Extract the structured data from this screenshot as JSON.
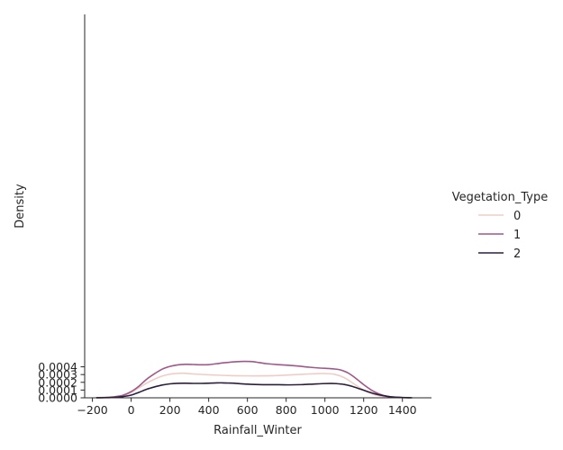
{
  "chart_data": {
    "type": "line",
    "xlabel": "Rainfall_Winter",
    "ylabel": "Density",
    "xlim": [
      -240,
      1550
    ],
    "ylim": [
      0,
      0.00495
    ],
    "x_ticks": [
      {
        "value": -200,
        "label": "−200"
      },
      {
        "value": 0,
        "label": "0"
      },
      {
        "value": 200,
        "label": "200"
      },
      {
        "value": 400,
        "label": "400"
      },
      {
        "value": 600,
        "label": "600"
      },
      {
        "value": 800,
        "label": "800"
      },
      {
        "value": 1000,
        "label": "1000"
      },
      {
        "value": 1200,
        "label": "1200"
      },
      {
        "value": 1400,
        "label": "1400"
      }
    ],
    "y_ticks": [
      {
        "value": 0,
        "label": "0.0000"
      },
      {
        "value": 0.0001,
        "label": "0.0001"
      },
      {
        "value": 0.0002,
        "label": "0.0002"
      },
      {
        "value": 0.0003,
        "label": "0.0003"
      },
      {
        "value": 0.0004,
        "label": "0.0004"
      }
    ],
    "grid": false,
    "legend": {
      "title": "Vegetation_Type",
      "placement": "right"
    },
    "series": [
      {
        "name": "0",
        "color": "#efcdc6",
        "points": [
          [
            -180,
            2e-06
          ],
          [
            -130,
            4e-06
          ],
          [
            -80,
            1.2e-05
          ],
          [
            -40,
            3e-05
          ],
          [
            0,
            7e-05
          ],
          [
            40,
            0.00013
          ],
          [
            80,
            0.00019
          ],
          [
            120,
            0.00024
          ],
          [
            160,
            0.00028
          ],
          [
            200,
            0.000305
          ],
          [
            240,
            0.000315
          ],
          [
            270,
            0.000317
          ],
          [
            320,
            0.000308
          ],
          [
            400,
            0.000297
          ],
          [
            480,
            0.000289
          ],
          [
            560,
            0.000284
          ],
          [
            640,
            0.000283
          ],
          [
            720,
            0.000285
          ],
          [
            800,
            0.000293
          ],
          [
            880,
            0.000303
          ],
          [
            960,
            0.000312
          ],
          [
            1000,
            0.000313
          ],
          [
            1050,
            0.000303
          ],
          [
            1100,
            0.00026
          ],
          [
            1150,
            0.00018
          ],
          [
            1200,
            0.0001
          ],
          [
            1250,
            4.5e-05
          ],
          [
            1300,
            1.8e-05
          ],
          [
            1350,
            7e-06
          ],
          [
            1400,
            2e-06
          ],
          [
            1440,
            1e-06
          ]
        ]
      },
      {
        "name": "1",
        "color": "#a0578a",
        "points": [
          [
            -180,
            2e-06
          ],
          [
            -130,
            5e-06
          ],
          [
            -80,
            1.5e-05
          ],
          [
            -40,
            3.5e-05
          ],
          [
            0,
            8e-05
          ],
          [
            40,
            0.00015
          ],
          [
            80,
            0.00024
          ],
          [
            120,
            0.00031
          ],
          [
            160,
            0.00037
          ],
          [
            200,
            0.000405
          ],
          [
            240,
            0.000425
          ],
          [
            280,
            0.000432
          ],
          [
            320,
            0.00043
          ],
          [
            360,
            0.000426
          ],
          [
            400,
            0.000428
          ],
          [
            440,
            0.00044
          ],
          [
            480,
            0.000452
          ],
          [
            540,
            0.000465
          ],
          [
            580,
            0.00047
          ],
          [
            620,
            0.000468
          ],
          [
            660,
            0.000455
          ],
          [
            700,
            0.00044
          ],
          [
            760,
            0.000428
          ],
          [
            800,
            0.000422
          ],
          [
            860,
            0.00041
          ],
          [
            920,
            0.000395
          ],
          [
            970,
            0.000385
          ],
          [
            1020,
            0.000378
          ],
          [
            1050,
            0.000372
          ],
          [
            1080,
            0.00036
          ],
          [
            1120,
            0.00032
          ],
          [
            1160,
            0.00025
          ],
          [
            1200,
            0.00017
          ],
          [
            1240,
            0.0001
          ],
          [
            1280,
            5e-05
          ],
          [
            1320,
            2e-05
          ],
          [
            1360,
            8e-06
          ],
          [
            1400,
            3e-06
          ],
          [
            1440,
            1e-06
          ]
        ]
      },
      {
        "name": "2",
        "color": "#2d1e3e",
        "points": [
          [
            -180,
            1e-06
          ],
          [
            -130,
            2e-06
          ],
          [
            -80,
            7e-06
          ],
          [
            -40,
            1.7e-05
          ],
          [
            0,
            3.5e-05
          ],
          [
            40,
            7e-05
          ],
          [
            80,
            0.00011
          ],
          [
            120,
            0.00014
          ],
          [
            160,
            0.000165
          ],
          [
            200,
            0.00018
          ],
          [
            240,
            0.000187
          ],
          [
            280,
            0.000188
          ],
          [
            330,
            0.000186
          ],
          [
            380,
            0.000187
          ],
          [
            430,
            0.000191
          ],
          [
            470,
            0.000193
          ],
          [
            520,
            0.000189
          ],
          [
            560,
            0.000182
          ],
          [
            600,
            0.000176
          ],
          [
            640,
            0.000172
          ],
          [
            700,
            0.000169
          ],
          [
            760,
            0.000169
          ],
          [
            820,
            0.000167
          ],
          [
            880,
            0.00017
          ],
          [
            940,
            0.000177
          ],
          [
            990,
            0.000183
          ],
          [
            1030,
            0.000185
          ],
          [
            1060,
            0.000183
          ],
          [
            1100,
            0.000172
          ],
          [
            1140,
            0.000148
          ],
          [
            1180,
            0.000115
          ],
          [
            1220,
            8e-05
          ],
          [
            1260,
            5e-05
          ],
          [
            1300,
            2.8e-05
          ],
          [
            1340,
            1.3e-05
          ],
          [
            1380,
            6e-06
          ],
          [
            1420,
            2e-06
          ],
          [
            1450,
            1e-06
          ]
        ]
      }
    ]
  }
}
